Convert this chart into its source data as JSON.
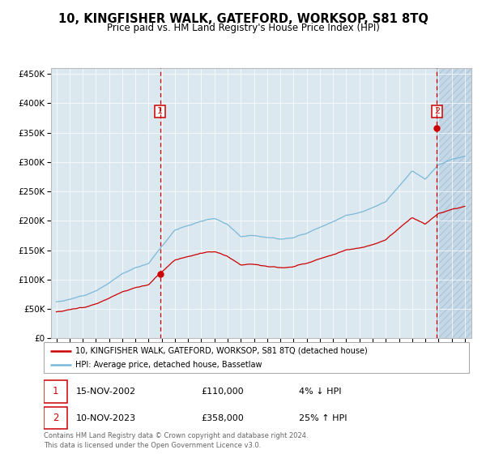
{
  "title": "10, KINGFISHER WALK, GATEFORD, WORKSOP, S81 8TQ",
  "subtitle": "Price paid vs. HM Land Registry's House Price Index (HPI)",
  "legend_line1": "10, KINGFISHER WALK, GATEFORD, WORKSOP, S81 8TQ (detached house)",
  "legend_line2": "HPI: Average price, detached house, Bassetlaw",
  "annotation1_date": "15-NOV-2002",
  "annotation1_price": "£110,000",
  "annotation1_change": "4% ↓ HPI",
  "annotation2_date": "10-NOV-2023",
  "annotation2_price": "£358,000",
  "annotation2_change": "25% ↑ HPI",
  "footer1": "Contains HM Land Registry data © Crown copyright and database right 2024.",
  "footer2": "This data is licensed under the Open Government Licence v3.0.",
  "hpi_color": "#7ab8d9",
  "sale_color": "#cc0000",
  "dashed_line_color": "#cc0000",
  "bg_plot": "#dce8f0",
  "bg_hatch_color": "#c5d8e8",
  "marker1_x": 2002.88,
  "marker1_y": 110000,
  "marker2_x": 2023.88,
  "marker2_y": 358000,
  "vline1_x": 2002.88,
  "vline2_x": 2023.88,
  "xlim": [
    1994.6,
    2026.5
  ],
  "ylim": [
    0,
    460000
  ],
  "yticks": [
    0,
    50000,
    100000,
    150000,
    200000,
    250000,
    300000,
    350000,
    400000,
    450000
  ],
  "ytick_labels": [
    "£0",
    "£50K",
    "£100K",
    "£150K",
    "£200K",
    "£250K",
    "£300K",
    "£350K",
    "£400K",
    "£450K"
  ],
  "hpi_base_points_x": [
    1995,
    1996,
    1997,
    1998,
    1999,
    2000,
    2001,
    2002,
    2003,
    2004,
    2005,
    2006,
    2007,
    2008,
    2009,
    2010,
    2011,
    2012,
    2013,
    2014,
    2015,
    2016,
    2017,
    2018,
    2019,
    2020,
    2021,
    2022,
    2023,
    2024,
    2025,
    2026
  ],
  "hpi_base_points_y": [
    62000,
    66000,
    72000,
    82000,
    95000,
    110000,
    120000,
    128000,
    158000,
    185000,
    193000,
    200000,
    205000,
    195000,
    175000,
    178000,
    175000,
    172000,
    175000,
    182000,
    193000,
    203000,
    213000,
    218000,
    225000,
    235000,
    260000,
    285000,
    270000,
    295000,
    305000,
    310000
  ],
  "sale1_x": 2002.88,
  "sale1_y": 110000,
  "sale2_x": 2023.88,
  "sale2_y": 358000
}
